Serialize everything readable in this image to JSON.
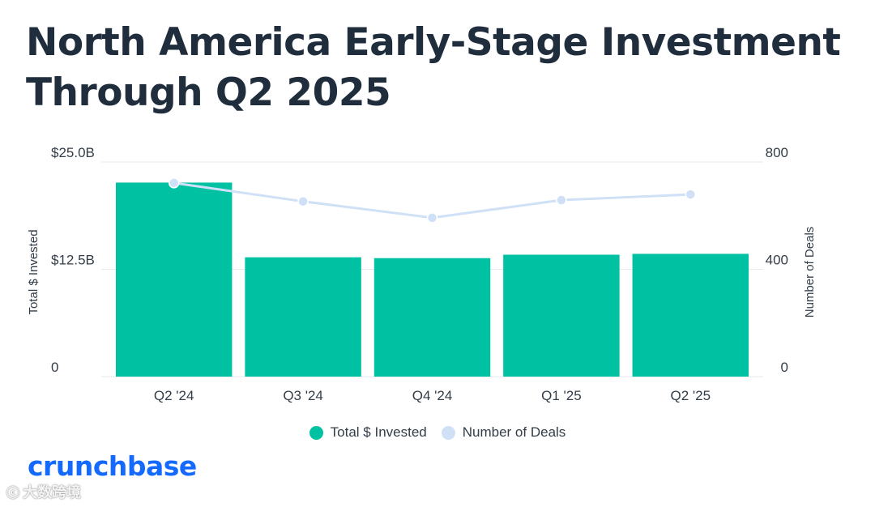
{
  "title_line1": "North America Early-Stage Investment",
  "title_line2": "Through Q2 2025",
  "logo": "crunchbase",
  "watermark": "大数跨境",
  "colors": {
    "bar": "#00c2a2",
    "line": "#cfe0f7",
    "title": "#1f2d3d",
    "text": "#333d47",
    "grid": "#e6e9ee",
    "brand": "#146aff"
  },
  "chart_data": {
    "type": "bar",
    "title": "North America Early-Stage Investment Through Q2 2025",
    "categories": [
      "Q2 '24",
      "Q3 '24",
      "Q4 '24",
      "Q1 '25",
      "Q2 '25"
    ],
    "series": [
      {
        "name": "Total $ Invested",
        "type": "bar",
        "axis": "left",
        "values": [
          22.6,
          13.9,
          13.8,
          14.2,
          14.3
        ]
      },
      {
        "name": "Number of Deals",
        "type": "line",
        "axis": "right",
        "values": [
          722,
          653,
          592,
          658,
          679
        ]
      }
    ],
    "ylabel_left": "Total $ Invested",
    "ylabel_right": "Number of Deals",
    "ylim_left": [
      0,
      25
    ],
    "ylim_right": [
      0,
      800
    ],
    "yticks_left": [
      {
        "value": 0,
        "label": "0"
      },
      {
        "value": 12.5,
        "label": "$12.5B"
      },
      {
        "value": 25,
        "label": "$25.0B"
      }
    ],
    "yticks_right": [
      {
        "value": 0,
        "label": "0"
      },
      {
        "value": 400,
        "label": "400"
      },
      {
        "value": 800,
        "label": "800"
      }
    ],
    "legend": [
      "Total $ Invested",
      "Number of Deals"
    ],
    "legend_position": "bottom-center",
    "grid": true
  }
}
